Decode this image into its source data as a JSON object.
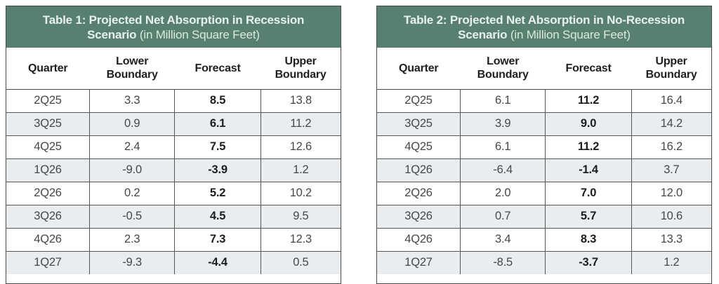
{
  "colors": {
    "band_green": "#588070",
    "band_text": "#e9f1ec",
    "row_stripe": "#e9edf0",
    "border": "#4a4a4a",
    "cell_text": "#474747",
    "forecast_text": "#1d1d1d"
  },
  "emphasized_column_index": 2,
  "tables": [
    {
      "title_strong": "Table 1: Projected Net Absorption in Recession Scenario",
      "title_note": "(in Million Square Feet)",
      "columns": [
        "Quarter",
        "Lower\nBoundary",
        "Forecast",
        "Upper\nBoundary"
      ],
      "rows": [
        [
          "2Q25",
          "3.3",
          "8.5",
          "13.8"
        ],
        [
          "3Q25",
          "0.9",
          "6.1",
          "11.2"
        ],
        [
          "4Q25",
          "2.4",
          "7.5",
          "12.6"
        ],
        [
          "1Q26",
          "-9.0",
          "-3.9",
          "1.2"
        ],
        [
          "2Q26",
          "0.2",
          "5.2",
          "10.2"
        ],
        [
          "3Q26",
          "-0.5",
          "4.5",
          "9.5"
        ],
        [
          "4Q26",
          "2.3",
          "7.3",
          "12.3"
        ],
        [
          "1Q27",
          "-9.3",
          "-4.4",
          "0.5"
        ]
      ]
    },
    {
      "title_strong": "Table 2: Projected Net Absorption in No-Recession Scenario",
      "title_note": "(in Million Square Feet)",
      "columns": [
        "Quarter",
        "Lower\nBoundary",
        "Forecast",
        "Upper\nBoundary"
      ],
      "rows": [
        [
          "2Q25",
          "6.1",
          "11.2",
          "16.4"
        ],
        [
          "3Q25",
          "3.9",
          "9.0",
          "14.2"
        ],
        [
          "4Q25",
          "6.1",
          "11.2",
          "16.2"
        ],
        [
          "1Q26",
          "-6.4",
          "-1.4",
          "3.7"
        ],
        [
          "2Q26",
          "2.0",
          "7.0",
          "12.0"
        ],
        [
          "3Q26",
          "0.7",
          "5.7",
          "10.6"
        ],
        [
          "4Q26",
          "3.4",
          "8.3",
          "13.3"
        ],
        [
          "1Q27",
          "-8.5",
          "-3.7",
          "1.2"
        ]
      ]
    }
  ]
}
